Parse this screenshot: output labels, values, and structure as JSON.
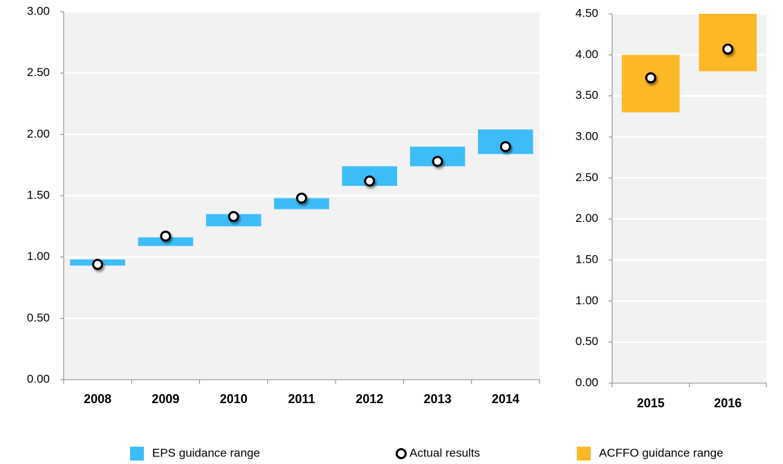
{
  "chart_data": [
    {
      "type": "range_bar",
      "categories": [
        "2008",
        "2009",
        "2010",
        "2011",
        "2012",
        "2013",
        "2014"
      ],
      "ylim": [
        0,
        3
      ],
      "yticks": [
        {
          "value": 0,
          "label": "0.00"
        },
        {
          "value": 0.5,
          "label": "0.50"
        },
        {
          "value": 1,
          "label": "1.00"
        },
        {
          "value": 1.5,
          "label": "1.50"
        },
        {
          "value": 2,
          "label": "2.00"
        },
        {
          "value": 2.5,
          "label": "2.50"
        },
        {
          "value": 3,
          "label": "3.00"
        }
      ],
      "grid": true,
      "series": [
        {
          "name": "EPS guidance range",
          "color": "#3dbdf7",
          "low": [
            0.93,
            1.09,
            1.25,
            1.39,
            1.58,
            1.74,
            1.84
          ],
          "high": [
            0.98,
            1.16,
            1.35,
            1.48,
            1.74,
            1.9,
            2.04
          ]
        },
        {
          "name": "Actual results",
          "color": "#000000",
          "values": [
            0.94,
            1.17,
            1.33,
            1.48,
            1.62,
            1.78,
            1.9
          ]
        }
      ]
    },
    {
      "type": "range_bar",
      "categories": [
        "2015",
        "2016"
      ],
      "ylim": [
        0,
        4.5
      ],
      "yticks": [
        {
          "value": 0,
          "label": "0.00"
        },
        {
          "value": 0.5,
          "label": "0.50"
        },
        {
          "value": 1,
          "label": "1.00"
        },
        {
          "value": 1.5,
          "label": "1.50"
        },
        {
          "value": 2,
          "label": "2.00"
        },
        {
          "value": 2.5,
          "label": "2.50"
        },
        {
          "value": 3,
          "label": "3.00"
        },
        {
          "value": 3.5,
          "label": "3.50"
        },
        {
          "value": 4,
          "label": "4.00"
        },
        {
          "value": 4.5,
          "label": "4.50"
        }
      ],
      "grid": true,
      "series": [
        {
          "name": "ACFFO guidance range",
          "color": "#fdb827",
          "low": [
            3.3,
            3.8
          ],
          "high": [
            4.0,
            4.5
          ]
        },
        {
          "color": "#000000",
          "values": [
            3.72,
            4.07
          ]
        }
      ]
    }
  ]
}
